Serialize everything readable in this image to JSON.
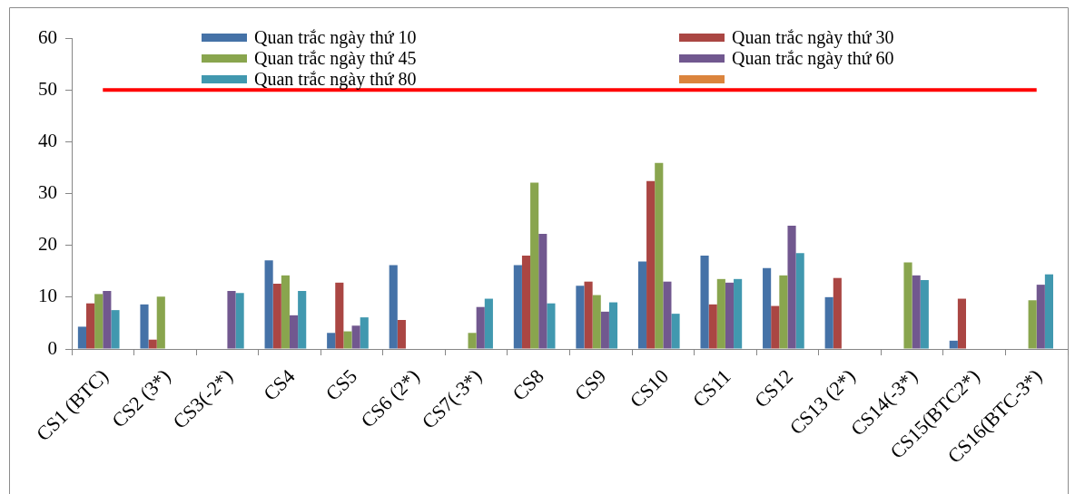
{
  "chart_data": {
    "type": "bar",
    "categories": [
      "CS1 (BTC)",
      "CS2 (3*)",
      "CS3(-2*)",
      "CS4",
      "CS5",
      "CS6 (2*)",
      "CS7(-3*)",
      "CS8",
      "CS9",
      "CS10",
      "CS11",
      "CS12",
      "CS13 (2*)",
      "CS14(-3*)",
      "CS15(BTC2*)",
      "CS16(BTC-3*)"
    ],
    "series": [
      {
        "name": "Quan trắc ngày thứ 10",
        "color": "#4572a7",
        "values": [
          4.3,
          8.6,
          null,
          17.1,
          3.1,
          16.2,
          null,
          16.2,
          12.2,
          16.9,
          18.0,
          15.6,
          10.0,
          null,
          1.6,
          null
        ]
      },
      {
        "name": "Quan trắc ngày thứ 30",
        "color": "#aa4643",
        "values": [
          8.8,
          1.8,
          null,
          12.6,
          12.8,
          5.6,
          null,
          18.0,
          13.0,
          32.4,
          8.6,
          8.3,
          13.7,
          null,
          9.7,
          null
        ]
      },
      {
        "name": "Quan trắc ngày thứ 45",
        "color": "#89a54e",
        "values": [
          10.6,
          10.1,
          null,
          14.2,
          3.4,
          null,
          3.1,
          32.1,
          10.4,
          35.9,
          13.5,
          14.2,
          null,
          16.7,
          null,
          9.4
        ]
      },
      {
        "name": "Quan trắc ngày thứ 60",
        "color": "#71588f",
        "values": [
          11.2,
          null,
          11.2,
          6.5,
          4.5,
          null,
          8.1,
          22.2,
          7.2,
          13.0,
          12.8,
          23.8,
          null,
          14.2,
          null,
          12.4
        ]
      },
      {
        "name": "Quan trắc ngày thứ 80",
        "color": "#4198af",
        "values": [
          7.5,
          null,
          10.8,
          11.2,
          6.1,
          null,
          9.7,
          8.8,
          9.0,
          6.8,
          13.5,
          18.5,
          null,
          13.3,
          null,
          14.4
        ]
      },
      {
        "color": "#db843d",
        "values": [
          null,
          null,
          null,
          null,
          null,
          null,
          null,
          null,
          null,
          null,
          null,
          null,
          null,
          null,
          null,
          null
        ]
      },
      {
        "type": "line",
        "color": "#ff0000",
        "values": [
          50,
          50,
          50,
          50,
          50,
          50,
          50,
          50,
          50,
          50,
          50,
          50,
          50,
          50,
          50,
          50
        ]
      }
    ],
    "ylim": [
      0,
      60
    ],
    "yticks": [
      0,
      10,
      20,
      30,
      40,
      50,
      60
    ],
    "legend": "top",
    "marker": "none"
  }
}
